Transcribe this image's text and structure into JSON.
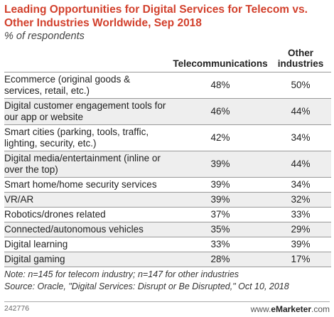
{
  "chart_data": {
    "type": "table",
    "title": "Leading Opportunities for Digital Services for Telecom vs. Other Industries Worldwide, Sep 2018",
    "subtitle": "% of respondents",
    "columns": [
      "Telecommunications",
      "Other industries"
    ],
    "rows": [
      {
        "label": "Ecommerce (original goods & services, retail, etc.)",
        "values": [
          "48%",
          "50%"
        ]
      },
      {
        "label": "Digital customer engagement tools for our app or website",
        "values": [
          "46%",
          "44%"
        ]
      },
      {
        "label": "Smart cities (parking, tools, traffic, lighting, security, etc.)",
        "values": [
          "42%",
          "34%"
        ]
      },
      {
        "label": "Digital media/entertainment (inline or over the top)",
        "values": [
          "39%",
          "44%"
        ]
      },
      {
        "label": "Smart home/home security services",
        "values": [
          "39%",
          "34%"
        ]
      },
      {
        "label": "VR/AR",
        "values": [
          "39%",
          "32%"
        ]
      },
      {
        "label": "Robotics/drones related",
        "values": [
          "37%",
          "33%"
        ]
      },
      {
        "label": "Connected/autonomous vehicles",
        "values": [
          "35%",
          "29%"
        ]
      },
      {
        "label": "Digital learning",
        "values": [
          "33%",
          "39%"
        ]
      },
      {
        "label": "Digital gaming",
        "values": [
          "28%",
          "17%"
        ]
      }
    ]
  },
  "notes": {
    "note": "Note: n=145 for telecom industry; n=147 for other industries",
    "source": "Source: Oracle, \"Digital Services: Disrupt or Be Disrupted,\" Oct 10, 2018"
  },
  "footer": {
    "chart_id": "242776",
    "brand_prefix": "www.",
    "brand_name": "eMarketer",
    "brand_suffix": ".com"
  },
  "colors": {
    "title": "#d2402c",
    "row_stripe": "#eeeeee"
  }
}
